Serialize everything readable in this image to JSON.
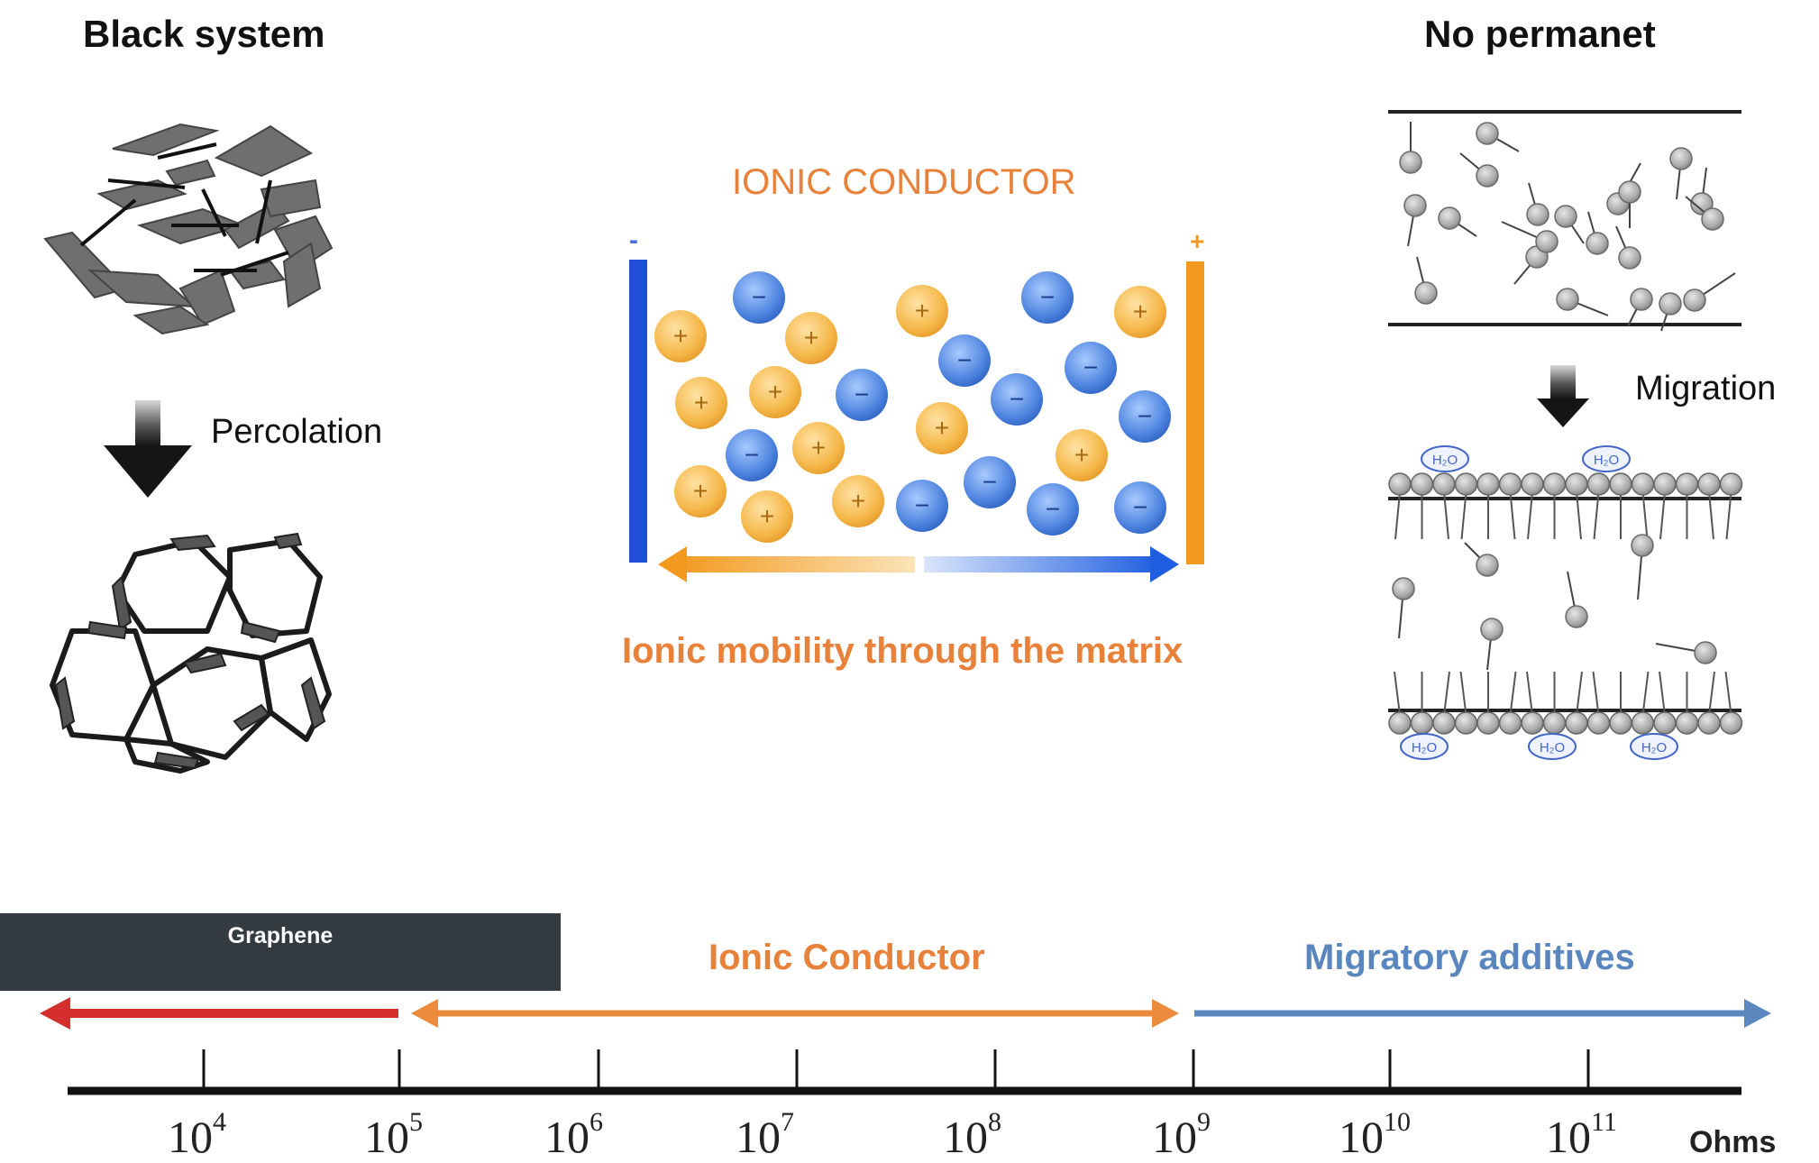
{
  "left_panel": {
    "title": "Black system",
    "arrow_label": "Percolation"
  },
  "center_panel": {
    "title": "IONIC CONDUCTOR",
    "negative_sign": "-",
    "positive_sign": "+",
    "caption": "Ionic mobility through the matrix",
    "cation_symbol": "+",
    "anion_symbol": "−"
  },
  "right_panel": {
    "title": "No permanet",
    "arrow_label": "Migration",
    "water_label": "H₂O"
  },
  "scale": {
    "graphene_label": "Graphene",
    "ionic_label": "Ionic Conductor",
    "migratory_label": "Migratory additives",
    "unit": "Ohms",
    "ticks": [
      {
        "base": "10",
        "exp": "4"
      },
      {
        "base": "10",
        "exp": "5"
      },
      {
        "base": "10",
        "exp": "6"
      },
      {
        "base": "10",
        "exp": "7"
      },
      {
        "base": "10",
        "exp": "8"
      },
      {
        "base": "10",
        "exp": "9"
      },
      {
        "base": "10",
        "exp": "10"
      },
      {
        "base": "10",
        "exp": "11"
      }
    ]
  },
  "colors": {
    "red_arrow": "#d42e2e",
    "orange_arrow": "#ed8b3c",
    "blue_arrow": "#5b87bf",
    "electrode_negative": "#1f4fd6",
    "electrode_positive": "#f29a1f",
    "cation": "#f5b84a",
    "anion": "#4f86e0",
    "graphene_box": "#333a40"
  }
}
